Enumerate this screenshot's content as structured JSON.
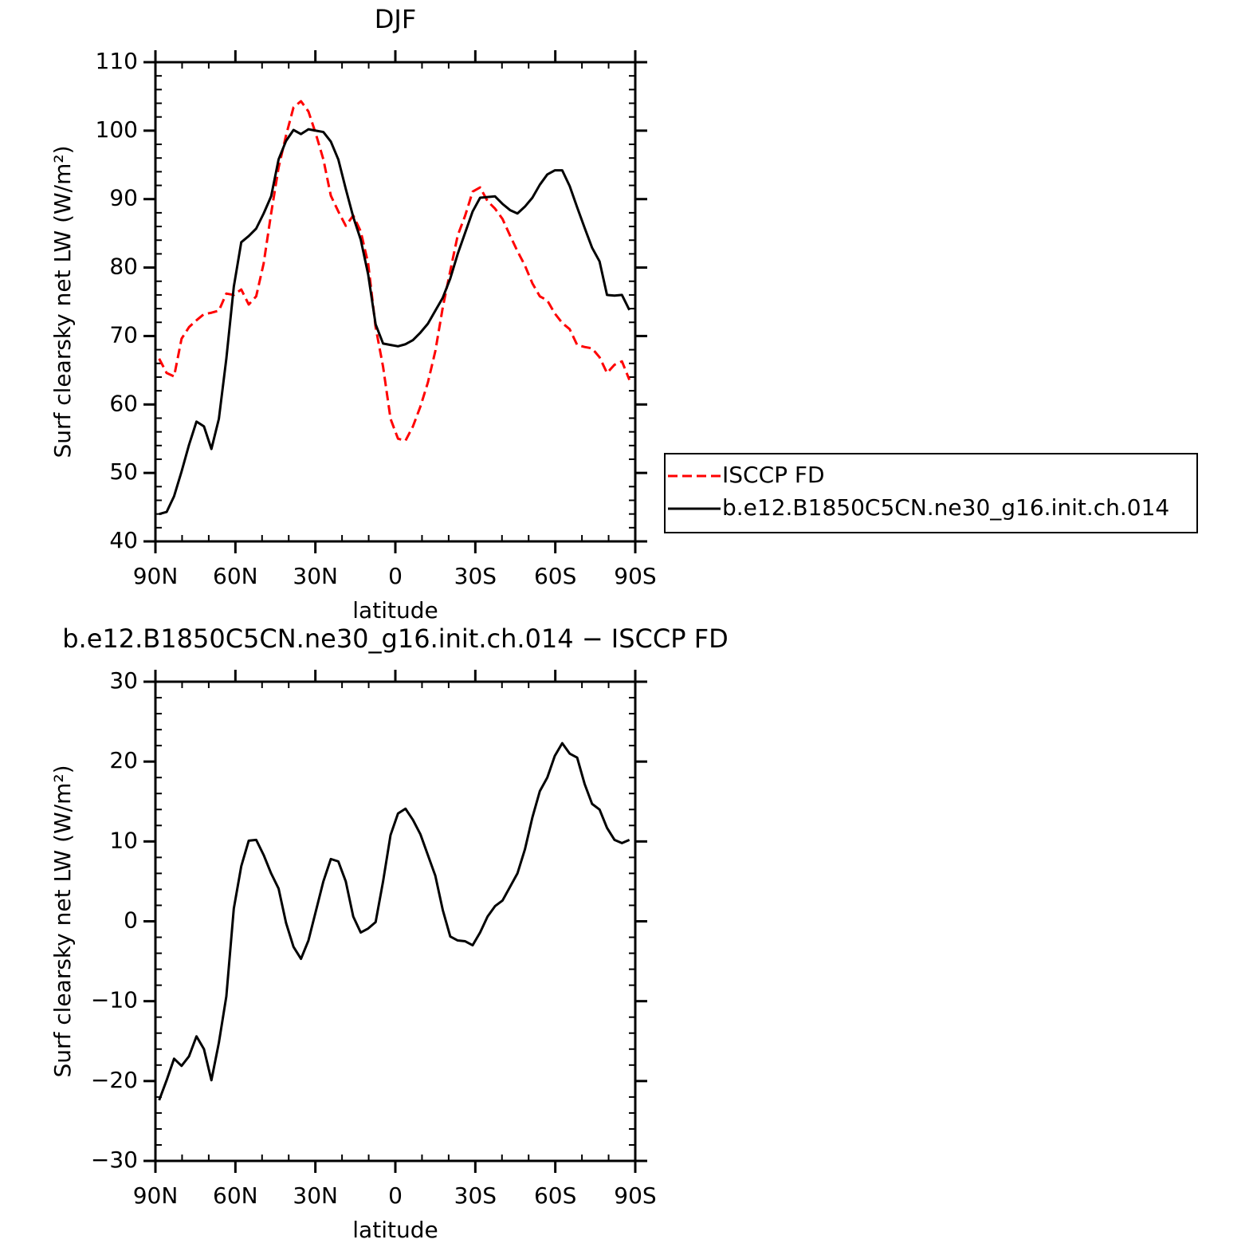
{
  "chart_data": [
    {
      "type": "line",
      "title": "DJF",
      "xlabel": "latitude",
      "ylabel": "Surf clearsky net LW (W/m²)",
      "x": [
        88.6,
        85.8,
        83.0,
        80.2,
        77.4,
        74.6,
        71.8,
        69.0,
        66.2,
        63.4,
        60.6,
        57.8,
        55.0,
        52.2,
        49.4,
        46.6,
        43.8,
        41.0,
        38.2,
        35.4,
        32.6,
        29.8,
        27.0,
        24.2,
        21.4,
        18.6,
        15.8,
        13.0,
        10.2,
        7.4,
        4.6,
        1.8,
        -1.0,
        -3.8,
        -6.6,
        -9.4,
        -12.2,
        -15.0,
        -17.8,
        -20.6,
        -23.4,
        -26.2,
        -29.0,
        -31.8,
        -34.6,
        -37.4,
        -40.2,
        -43.0,
        -45.8,
        -48.6,
        -51.4,
        -54.2,
        -57.0,
        -59.8,
        -62.6,
        -65.4,
        -68.2,
        -71.0,
        -73.8,
        -76.6,
        -79.4,
        -82.2,
        -85.0,
        -87.8
      ],
      "series": [
        {
          "name": "ISCCP FD",
          "color": "#ff0000",
          "dash": true,
          "values": [
            66.7,
            64.6,
            64.1,
            69.6,
            71.3,
            72.3,
            73.2,
            73.4,
            73.7,
            76.2,
            76.0,
            76.8,
            74.6,
            75.8,
            80.6,
            87.9,
            94.6,
            99.3,
            103.4,
            104.3,
            102.8,
            99.5,
            95.8,
            90.5,
            88.2,
            86.1,
            87.6,
            85.3,
            80.6,
            71.3,
            65.5,
            57.9,
            55.0,
            54.7,
            56.8,
            59.7,
            63.2,
            67.8,
            74.2,
            79.5,
            84.7,
            87.6,
            91.1,
            91.7,
            89.7,
            88.6,
            87.1,
            84.7,
            82.4,
            80.3,
            77.7,
            75.8,
            75.2,
            73.3,
            71.9,
            71.0,
            68.7,
            68.4,
            68.2,
            66.9,
            64.6,
            65.8,
            66.3,
            63.6
          ]
        },
        {
          "name": "b.e12.B1850C5CN.ne30_g16.init.ch.014",
          "color": "#000000",
          "dash": false,
          "values": [
            44.0,
            44.3,
            46.6,
            50.2,
            54.1,
            57.5,
            56.8,
            53.5,
            57.9,
            66.7,
            77.2,
            83.7,
            84.6,
            85.7,
            87.9,
            90.4,
            95.8,
            98.5,
            100.1,
            99.5,
            100.2,
            100.0,
            99.8,
            98.4,
            95.8,
            91.5,
            87.4,
            84.1,
            79.0,
            71.7,
            68.9,
            68.7,
            68.5,
            68.8,
            69.4,
            70.5,
            71.8,
            73.7,
            75.6,
            78.4,
            82.0,
            85.1,
            88.2,
            90.2,
            90.3,
            90.4,
            89.3,
            88.4,
            87.9,
            88.9,
            90.2,
            92.1,
            93.6,
            94.2,
            94.2,
            91.9,
            88.8,
            85.8,
            82.9,
            80.9,
            76.0,
            75.9,
            76.0,
            73.8
          ]
        }
      ],
      "xlim": [
        90,
        -90
      ],
      "xticks": [
        {
          "value": 90,
          "label": "90N"
        },
        {
          "value": 60,
          "label": "60N"
        },
        {
          "value": 30,
          "label": "30N"
        },
        0,
        {
          "value": -30,
          "label": "30S"
        },
        {
          "value": -60,
          "label": "60S"
        },
        {
          "value": -90,
          "label": "90S"
        }
      ],
      "ylim": [
        40,
        110
      ],
      "yticks": [
        40,
        50,
        60,
        70,
        80,
        90,
        100,
        110
      ],
      "legend": "outside right"
    },
    {
      "type": "line",
      "title": "b.e12.B1850C5CN.ne30_g16.init.ch.014 − ISCCP FD",
      "xlabel": "latitude",
      "ylabel": "Surf clearsky net LW (W/m²)",
      "x": [
        88.6,
        85.8,
        83.0,
        80.2,
        77.4,
        74.6,
        71.8,
        69.0,
        66.2,
        63.4,
        60.6,
        57.8,
        55.0,
        52.2,
        49.4,
        46.6,
        43.8,
        41.0,
        38.2,
        35.4,
        32.6,
        29.8,
        27.0,
        24.2,
        21.4,
        18.6,
        15.8,
        13.0,
        10.2,
        7.4,
        4.6,
        1.8,
        -1.0,
        -3.8,
        -6.6,
        -9.4,
        -12.2,
        -15.0,
        -17.8,
        -20.6,
        -23.4,
        -26.2,
        -29.0,
        -31.8,
        -34.6,
        -37.4,
        -40.2,
        -43.0,
        -45.8,
        -48.6,
        -51.4,
        -54.2,
        -57.0,
        -59.8,
        -62.6,
        -65.4,
        -68.2,
        -71.0,
        -73.8,
        -76.6,
        -79.4,
        -82.2,
        -85.0,
        -87.8
      ],
      "series": [
        {
          "color": "#000000",
          "dash": false,
          "values": [
            -22.4,
            -19.9,
            -17.2,
            -18.1,
            -16.9,
            -14.4,
            -16.0,
            -19.9,
            -15.2,
            -9.4,
            1.6,
            6.9,
            10.1,
            10.2,
            8.3,
            6.0,
            4.1,
            -0.2,
            -3.2,
            -4.7,
            -2.4,
            1.3,
            5.0,
            7.8,
            7.5,
            5.0,
            0.6,
            -1.4,
            -0.9,
            -0.1,
            5.0,
            10.8,
            13.5,
            14.1,
            12.7,
            10.9,
            8.3,
            5.7,
            1.4,
            -1.9,
            -2.4,
            -2.5,
            -3.0,
            -1.4,
            0.6,
            1.9,
            2.6,
            4.3,
            6.0,
            9.0,
            13.0,
            16.3,
            18.0,
            20.7,
            22.3,
            21.0,
            20.5,
            17.2,
            14.7,
            14.0,
            11.7,
            10.2,
            9.8,
            10.2
          ]
        }
      ],
      "xlim": [
        90,
        -90
      ],
      "xticks": [
        {
          "value": 90,
          "label": "90N"
        },
        {
          "value": 60,
          "label": "60N"
        },
        {
          "value": 30,
          "label": "30N"
        },
        0,
        {
          "value": -30,
          "label": "30S"
        },
        {
          "value": -60,
          "label": "60S"
        },
        {
          "value": -90,
          "label": "90S"
        }
      ],
      "ylim": [
        -30,
        30
      ],
      "yticks": [
        {
          "value": -30,
          "label": "−30"
        },
        {
          "value": -20,
          "label": "−20"
        },
        {
          "value": -10,
          "label": "−10"
        },
        0,
        10,
        20,
        30
      ]
    }
  ]
}
